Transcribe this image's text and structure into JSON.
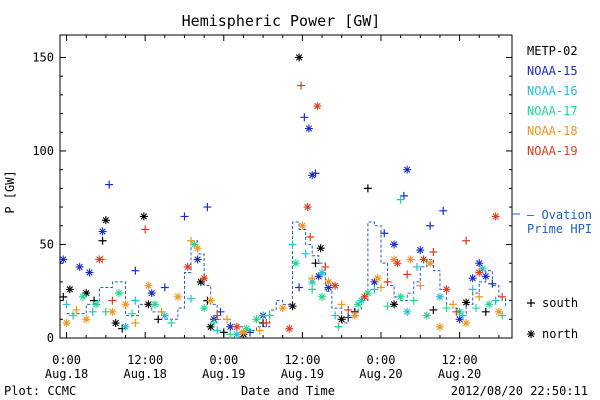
{
  "chart_data": {
    "type": "scatter",
    "title": "Hemispheric Power [GW]",
    "ylabel": "P [GW]",
    "xlabel": "Date and Time",
    "xlim": [
      -1,
      68
    ],
    "ylim": [
      0,
      162
    ],
    "y_ticks": [
      0,
      50,
      100,
      150
    ],
    "x_ticks": [
      {
        "x": 0,
        "time": "0:00",
        "date": "Aug.18"
      },
      {
        "x": 12,
        "time": "12:00",
        "date": "Aug.18"
      },
      {
        "x": 24,
        "time": "0:00",
        "date": "Aug.19"
      },
      {
        "x": 36,
        "time": "12:00",
        "date": "Aug.19"
      },
      {
        "x": 48,
        "time": "0:00",
        "date": "Aug.20"
      },
      {
        "x": 60,
        "time": "12:00",
        "date": "Aug.20"
      }
    ],
    "x_unit": "hours since 2012-08-18 00:00 UT",
    "grid": false,
    "legend_position": "right",
    "footer_left": "Plot: CCMC",
    "footer_right": "2012/08/20 22:50:11",
    "ovation_label_line1": "— Ovation",
    "ovation_label_line2": "Prime HPI",
    "ovation_color": "#1f5fc8",
    "marker_legend": [
      {
        "symbol": "+",
        "label": "south"
      },
      {
        "symbol": "*",
        "label": "north"
      }
    ],
    "series": [
      {
        "name": "METP-02",
        "color": "#000000",
        "points": [
          [
            -0.5,
            22,
            "+"
          ],
          [
            0.5,
            26,
            "*"
          ],
          [
            3,
            24,
            "*"
          ],
          [
            4.2,
            20,
            "+"
          ],
          [
            5.5,
            52,
            "+"
          ],
          [
            6,
            63,
            "*"
          ],
          [
            7.5,
            8,
            "*"
          ],
          [
            8.5,
            5,
            "+"
          ],
          [
            11.8,
            65,
            "*"
          ],
          [
            12.5,
            18,
            "*"
          ],
          [
            14,
            10,
            "+"
          ],
          [
            20.5,
            30,
            "*"
          ],
          [
            21.5,
            20,
            "+"
          ],
          [
            22,
            6,
            "*"
          ],
          [
            24,
            3,
            "+"
          ],
          [
            27,
            2,
            "*"
          ],
          [
            30,
            8,
            "+"
          ],
          [
            34.5,
            17,
            "*"
          ],
          [
            35.5,
            150,
            "*"
          ],
          [
            38,
            40,
            "+"
          ],
          [
            38.8,
            48,
            "*"
          ],
          [
            42,
            10,
            "*"
          ],
          [
            44,
            14,
            "+"
          ],
          [
            46,
            80,
            "+"
          ],
          [
            50,
            18,
            "*"
          ],
          [
            56,
            15,
            "+"
          ],
          [
            61,
            19,
            "*"
          ],
          [
            64,
            14,
            "+"
          ]
        ]
      },
      {
        "name": "NOAA-15",
        "color": "#1a2dc8",
        "points": [
          [
            -0.5,
            42,
            "*"
          ],
          [
            2,
            38,
            "*"
          ],
          [
            3.5,
            35,
            "*"
          ],
          [
            5.5,
            57,
            "*"
          ],
          [
            6.5,
            82,
            "+"
          ],
          [
            10.5,
            36,
            "+"
          ],
          [
            13,
            24,
            "*"
          ],
          [
            15,
            27,
            "+"
          ],
          [
            18,
            65,
            "+"
          ],
          [
            20,
            42,
            "*"
          ],
          [
            21.5,
            70,
            "+"
          ],
          [
            22.5,
            10,
            "*"
          ],
          [
            23.5,
            14,
            "+"
          ],
          [
            25,
            6,
            "*"
          ],
          [
            28,
            3,
            "+"
          ],
          [
            30,
            12,
            "*"
          ],
          [
            35.5,
            27,
            "+"
          ],
          [
            36.3,
            118,
            "+"
          ],
          [
            37,
            112,
            "*"
          ],
          [
            37.5,
            87,
            "*"
          ],
          [
            38,
            88,
            "+"
          ],
          [
            38.5,
            33,
            "*"
          ],
          [
            40,
            27,
            "*"
          ],
          [
            43,
            11,
            "+"
          ],
          [
            47,
            30,
            "*"
          ],
          [
            48.5,
            56,
            "+"
          ],
          [
            50,
            50,
            "*"
          ],
          [
            51.5,
            76,
            "+"
          ],
          [
            52,
            90,
            "*"
          ],
          [
            54,
            47,
            "*"
          ],
          [
            55.5,
            60,
            "+"
          ],
          [
            57.5,
            68,
            "+"
          ],
          [
            60,
            10,
            "*"
          ],
          [
            62,
            32,
            "*"
          ],
          [
            63,
            40,
            "*"
          ],
          [
            64,
            33,
            "*"
          ],
          [
            65,
            29,
            "+"
          ]
        ]
      },
      {
        "name": "NOAA-16",
        "color": "#22c0d8",
        "points": [
          [
            0,
            18,
            "+"
          ],
          [
            4,
            14,
            "+"
          ],
          [
            9,
            6,
            "*"
          ],
          [
            10.5,
            20,
            "+"
          ],
          [
            15,
            12,
            "*"
          ],
          [
            19,
            21,
            "+"
          ],
          [
            23,
            4,
            "+"
          ],
          [
            26,
            2,
            "*"
          ],
          [
            30,
            12,
            "+"
          ],
          [
            34.5,
            50,
            "+"
          ],
          [
            36.5,
            45,
            "+"
          ],
          [
            37.5,
            30,
            "*"
          ],
          [
            39,
            35,
            "*"
          ],
          [
            41,
            12,
            "+"
          ],
          [
            45,
            20,
            "*"
          ],
          [
            47,
            26,
            "+"
          ],
          [
            51,
            74,
            "+"
          ],
          [
            52,
            14,
            "*"
          ],
          [
            53.5,
            38,
            "+"
          ],
          [
            57,
            22,
            "*"
          ],
          [
            60.5,
            12,
            "+"
          ],
          [
            62,
            26,
            "+"
          ],
          [
            63.5,
            37,
            "*"
          ],
          [
            65.5,
            20,
            "+"
          ]
        ]
      },
      {
        "name": "NOAA-17",
        "color": "#1ed890",
        "points": [
          [
            1,
            12,
            "+"
          ],
          [
            2.5,
            22,
            "*"
          ],
          [
            4.5,
            18,
            "*"
          ],
          [
            6,
            14,
            "+"
          ],
          [
            8,
            24,
            "*"
          ],
          [
            10,
            13,
            "+"
          ],
          [
            13.5,
            18,
            "*"
          ],
          [
            16,
            8,
            "+"
          ],
          [
            19.5,
            50,
            "*"
          ],
          [
            21,
            16,
            "*"
          ],
          [
            22.5,
            8,
            "+"
          ],
          [
            25,
            2,
            "+"
          ],
          [
            27.5,
            5,
            "*"
          ],
          [
            29,
            10,
            "*"
          ],
          [
            31,
            12,
            "+"
          ],
          [
            35,
            40,
            "*"
          ],
          [
            37.5,
            26,
            "+"
          ],
          [
            39,
            22,
            "*"
          ],
          [
            41.5,
            6,
            "+"
          ],
          [
            44.5,
            18,
            "*"
          ],
          [
            46,
            24,
            "*"
          ],
          [
            49,
            17,
            "+"
          ],
          [
            51,
            22,
            "*"
          ],
          [
            53,
            20,
            "+"
          ],
          [
            55,
            12,
            "*"
          ],
          [
            58,
            16,
            "+"
          ],
          [
            60,
            14,
            "*"
          ],
          [
            62.5,
            16,
            "+"
          ],
          [
            64.5,
            18,
            "*"
          ],
          [
            66.5,
            12,
            "+"
          ]
        ]
      },
      {
        "name": "NOAA-18",
        "color": "#f0961e",
        "points": [
          [
            0,
            8,
            "*"
          ],
          [
            1.5,
            15,
            "+"
          ],
          [
            3,
            10,
            "*"
          ],
          [
            5.5,
            42,
            "+"
          ],
          [
            7,
            14,
            "*"
          ],
          [
            9,
            18,
            "*"
          ],
          [
            10.5,
            8,
            "+"
          ],
          [
            12.5,
            28,
            "*"
          ],
          [
            14.5,
            14,
            "+"
          ],
          [
            17,
            22,
            "*"
          ],
          [
            19,
            52,
            "+"
          ],
          [
            20,
            48,
            "*"
          ],
          [
            22,
            20,
            "*"
          ],
          [
            24.5,
            10,
            "+"
          ],
          [
            27,
            3,
            "*"
          ],
          [
            29.5,
            4,
            "+"
          ],
          [
            33,
            16,
            "*"
          ],
          [
            36,
            60,
            "*"
          ],
          [
            37.5,
            32,
            "+"
          ],
          [
            40,
            30,
            "*"
          ],
          [
            42,
            18,
            "+"
          ],
          [
            44,
            12,
            "*"
          ],
          [
            47.5,
            32,
            "*"
          ],
          [
            48,
            27,
            "+"
          ],
          [
            50,
            42,
            "*"
          ],
          [
            52.5,
            42,
            "*"
          ],
          [
            54,
            28,
            "+"
          ],
          [
            55.5,
            40,
            "*"
          ],
          [
            57,
            6,
            "*"
          ],
          [
            59,
            18,
            "+"
          ],
          [
            61,
            8,
            "*"
          ],
          [
            63,
            22,
            "+"
          ],
          [
            66,
            14,
            "*"
          ]
        ]
      },
      {
        "name": "NOAA-19",
        "color": "#e03c1e",
        "points": [
          [
            5,
            42,
            "*"
          ],
          [
            7,
            20,
            "+"
          ],
          [
            12,
            58,
            "+"
          ],
          [
            18.5,
            38,
            "*"
          ],
          [
            21,
            32,
            "*"
          ],
          [
            23,
            12,
            "+"
          ],
          [
            26,
            6,
            "*"
          ],
          [
            30.5,
            8,
            "+"
          ],
          [
            34,
            5,
            "*"
          ],
          [
            35.8,
            135,
            "+"
          ],
          [
            36.8,
            70,
            "*"
          ],
          [
            37.2,
            54,
            "+"
          ],
          [
            38.3,
            124,
            "*"
          ],
          [
            39.5,
            38,
            "+"
          ],
          [
            41,
            28,
            "*"
          ],
          [
            43,
            15,
            "+"
          ],
          [
            45.5,
            22,
            "*"
          ],
          [
            49,
            30,
            "+"
          ],
          [
            50.5,
            40,
            "*"
          ],
          [
            52,
            34,
            "+"
          ],
          [
            54.5,
            42,
            "*"
          ],
          [
            56,
            46,
            "+"
          ],
          [
            58,
            26,
            "*"
          ],
          [
            59.5,
            14,
            "+"
          ],
          [
            61,
            52,
            "+"
          ],
          [
            63,
            35,
            "*"
          ],
          [
            65.5,
            65,
            "*"
          ],
          [
            66.5,
            22,
            "+"
          ]
        ]
      }
    ],
    "ovation_hpi": {
      "name": "Ovation Prime HPI",
      "color": "#1f5fc8",
      "points": [
        [
          0,
          13
        ],
        [
          3,
          18
        ],
        [
          5,
          27
        ],
        [
          7,
          30
        ],
        [
          9,
          12
        ],
        [
          11,
          18
        ],
        [
          13,
          14
        ],
        [
          15,
          10
        ],
        [
          17,
          16
        ],
        [
          18,
          35
        ],
        [
          19,
          52
        ],
        [
          20,
          45
        ],
        [
          21,
          28
        ],
        [
          22,
          18
        ],
        [
          23,
          10
        ],
        [
          25,
          6
        ],
        [
          27,
          4
        ],
        [
          29,
          6
        ],
        [
          31,
          15
        ],
        [
          32,
          20
        ],
        [
          33,
          18
        ],
        [
          34.5,
          62
        ],
        [
          35.5,
          58
        ],
        [
          36.5,
          50
        ],
        [
          37.5,
          44
        ],
        [
          38.5,
          40
        ],
        [
          39.5,
          25
        ],
        [
          40.5,
          16
        ],
        [
          42,
          8
        ],
        [
          43,
          12
        ],
        [
          44,
          15
        ],
        [
          45,
          20
        ],
        [
          46,
          62
        ],
        [
          47,
          60
        ],
        [
          48,
          40
        ],
        [
          49,
          28
        ],
        [
          50,
          22
        ],
        [
          51,
          20
        ],
        [
          52,
          24
        ],
        [
          53,
          30
        ],
        [
          54,
          38
        ],
        [
          55,
          42
        ],
        [
          56,
          36
        ],
        [
          57,
          26
        ],
        [
          58,
          18
        ],
        [
          59,
          16
        ],
        [
          60,
          12
        ],
        [
          61,
          18
        ],
        [
          62,
          24
        ],
        [
          63,
          30
        ],
        [
          64,
          36
        ],
        [
          65,
          28
        ],
        [
          66,
          22
        ],
        [
          67,
          16
        ]
      ]
    }
  }
}
